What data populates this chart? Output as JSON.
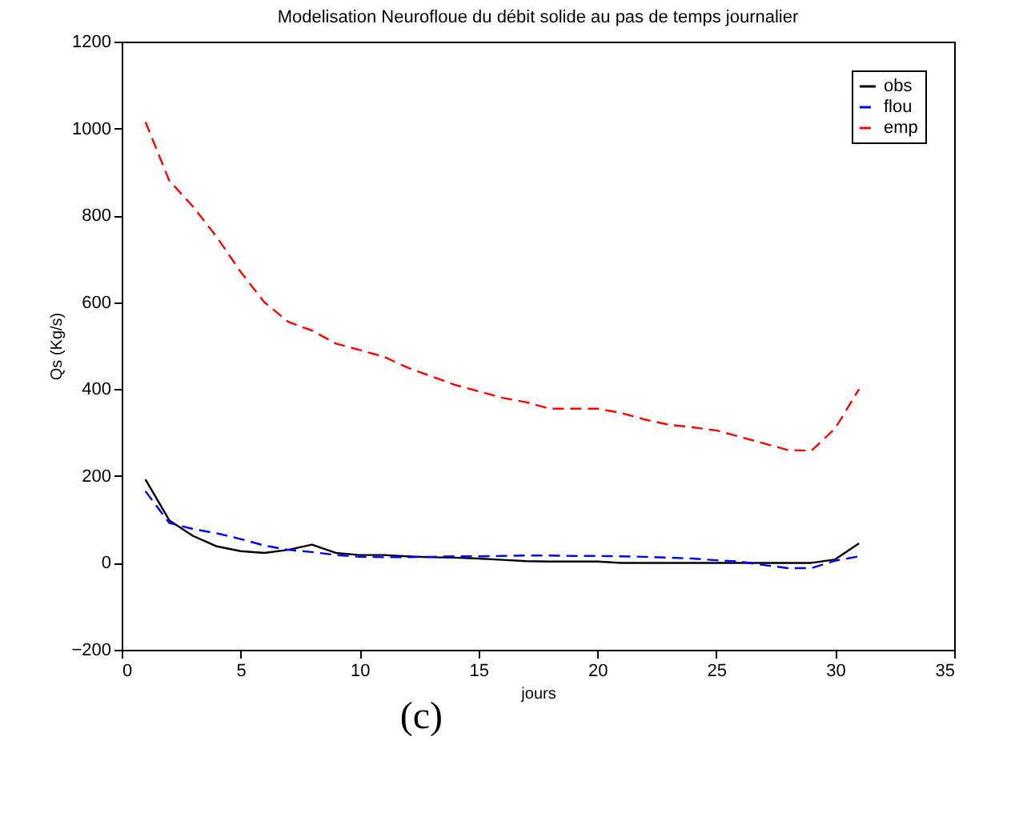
{
  "chart_data": {
    "type": "line",
    "title": "Modelisation Neurofloue du débit solide au pas de temps journalier",
    "xlabel": "jours",
    "ylabel": "Qs (Kg/s)",
    "x": [
      1,
      2,
      3,
      4,
      5,
      6,
      7,
      8,
      9,
      10,
      11,
      12,
      13,
      14,
      15,
      16,
      17,
      18,
      19,
      20,
      21,
      22,
      23,
      24,
      25,
      26,
      27,
      28,
      29,
      30,
      31
    ],
    "series": [
      {
        "name": "obs",
        "color": "#000000",
        "line_style": "solid",
        "values": [
          192,
          98,
          62,
          38,
          27,
          23,
          30,
          42,
          23,
          18,
          18,
          15,
          13,
          12,
          10,
          7,
          4,
          3,
          3,
          3,
          0,
          0,
          0,
          0,
          0,
          0,
          0,
          0,
          0,
          8,
          45
        ]
      },
      {
        "name": "flou",
        "color": "#0000ff",
        "line_style": "dashed",
        "values": [
          165,
          92,
          78,
          68,
          55,
          40,
          30,
          25,
          18,
          14,
          13,
          13,
          14,
          15,
          15,
          16,
          17,
          17,
          16,
          16,
          15,
          14,
          12,
          10,
          6,
          3,
          -5,
          -12,
          -12,
          5,
          15
        ]
      },
      {
        "name": "emp",
        "color": "#ff0000",
        "line_style": "dashed",
        "values": [
          1015,
          880,
          820,
          750,
          670,
          600,
          555,
          535,
          505,
          490,
          475,
          450,
          430,
          410,
          395,
          380,
          370,
          355,
          355,
          355,
          345,
          330,
          318,
          312,
          305,
          290,
          275,
          260,
          258,
          310,
          400
        ]
      }
    ],
    "xlim": [
      0,
      35
    ],
    "xticks": [
      0,
      5,
      10,
      15,
      20,
      25,
      30,
      35
    ],
    "ylim": [
      -200,
      1200
    ],
    "yticks": [
      -200,
      0,
      200,
      400,
      600,
      800,
      1000,
      1200
    ],
    "grid": false,
    "legend": "top right",
    "marker": "none",
    "annotations": [
      "(c)"
    ]
  }
}
